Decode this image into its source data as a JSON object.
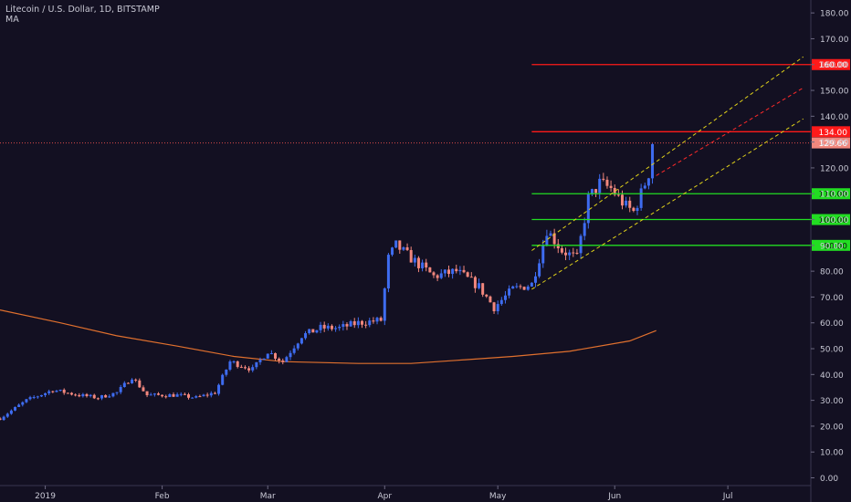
{
  "chart_data": {
    "type": "candlestick",
    "symbol_line": "Litecoin / U.S. Dollar, 1D, BITSTAMP",
    "indicator": "MA",
    "x_axis": {
      "tick_labels": [
        "2019",
        "Feb",
        "Mar",
        "Apr",
        "May",
        "Jun",
        "Jul"
      ],
      "ticks_on_date": [
        "2019-01-01",
        "2019-02-01",
        "2019-03-01",
        "2019-04-01",
        "2019-05-01",
        "2019-06-01",
        "2019-07-01"
      ],
      "range": [
        "2018-12-20",
        "2019-07-23"
      ]
    },
    "y_axis": {
      "range": [
        -3,
        185
      ],
      "ticks": [
        0,
        10,
        20,
        30,
        40,
        50,
        60,
        70,
        80,
        90,
        100,
        110,
        120,
        130,
        140,
        150,
        160,
        170,
        180
      ],
      "tick_labels": [
        "0.00",
        "10.00",
        "20.00",
        "30.00",
        "40.00",
        "50.00",
        "60.00",
        "70.00",
        "80.00",
        "90.00",
        "100.00",
        "110.00",
        "120.00",
        "130.00",
        "140.00",
        "150.00",
        "160.00",
        "170.00",
        "180.00"
      ]
    },
    "colors": {
      "up": "#3e6cf0",
      "down": "#f2877d",
      "ma": "#e0702e",
      "background": "#131022",
      "red_level": "#ff1a1a",
      "green_level": "#22dd22",
      "channel": "#e0d21a",
      "channel_mid": "#ff2a2a"
    },
    "candles_close": [
      {
        "date": "2018-12-20",
        "value": 23
      },
      {
        "date": "2018-12-27",
        "value": 30
      },
      {
        "date": "2019-01-03",
        "value": 34
      },
      {
        "date": "2019-01-10",
        "value": 32
      },
      {
        "date": "2019-01-15",
        "value": 31
      },
      {
        "date": "2019-01-20",
        "value": 33
      },
      {
        "date": "2019-01-24",
        "value": 39
      },
      {
        "date": "2019-01-28",
        "value": 32
      },
      {
        "date": "2019-02-05",
        "value": 32
      },
      {
        "date": "2019-02-10",
        "value": 31
      },
      {
        "date": "2019-02-15",
        "value": 33
      },
      {
        "date": "2019-02-19",
        "value": 45
      },
      {
        "date": "2019-02-25",
        "value": 42
      },
      {
        "date": "2019-03-01",
        "value": 49
      },
      {
        "date": "2019-03-05",
        "value": 45
      },
      {
        "date": "2019-03-10",
        "value": 55
      },
      {
        "date": "2019-03-15",
        "value": 58
      },
      {
        "date": "2019-03-20",
        "value": 58
      },
      {
        "date": "2019-03-25",
        "value": 60
      },
      {
        "date": "2019-03-31",
        "value": 61
      },
      {
        "date": "2019-04-02",
        "value": 85
      },
      {
        "date": "2019-04-04",
        "value": 90
      },
      {
        "date": "2019-04-08",
        "value": 85
      },
      {
        "date": "2019-04-14",
        "value": 78
      },
      {
        "date": "2019-04-20",
        "value": 80
      },
      {
        "date": "2019-04-26",
        "value": 74
      },
      {
        "date": "2019-04-30",
        "value": 66
      },
      {
        "date": "2019-05-05",
        "value": 73
      },
      {
        "date": "2019-05-10",
        "value": 75
      },
      {
        "date": "2019-05-12",
        "value": 85
      },
      {
        "date": "2019-05-14",
        "value": 96
      },
      {
        "date": "2019-05-18",
        "value": 88
      },
      {
        "date": "2019-05-22",
        "value": 85
      },
      {
        "date": "2019-05-25",
        "value": 108
      },
      {
        "date": "2019-05-28",
        "value": 114
      },
      {
        "date": "2019-05-31",
        "value": 112
      },
      {
        "date": "2019-06-04",
        "value": 105
      },
      {
        "date": "2019-06-06",
        "value": 103
      },
      {
        "date": "2019-06-08",
        "value": 110
      },
      {
        "date": "2019-06-10",
        "value": 118
      },
      {
        "date": "2019-06-11",
        "value": 130
      }
    ],
    "ma_line": [
      {
        "date": "2018-12-20",
        "value": 65
      },
      {
        "date": "2019-01-05",
        "value": 60
      },
      {
        "date": "2019-01-20",
        "value": 55
      },
      {
        "date": "2019-02-05",
        "value": 51
      },
      {
        "date": "2019-02-20",
        "value": 47
      },
      {
        "date": "2019-03-05",
        "value": 45
      },
      {
        "date": "2019-03-25",
        "value": 44.3
      },
      {
        "date": "2019-04-08",
        "value": 44.3
      },
      {
        "date": "2019-04-20",
        "value": 45.5
      },
      {
        "date": "2019-05-05",
        "value": 47
      },
      {
        "date": "2019-05-20",
        "value": 49
      },
      {
        "date": "2019-06-05",
        "value": 53
      },
      {
        "date": "2019-06-12",
        "value": 57
      }
    ],
    "horizontal_levels": [
      {
        "value": 160,
        "label": "160.00",
        "color": "red",
        "start": "2019-05-10"
      },
      {
        "value": 134,
        "label": "134.00",
        "color": "red",
        "start": "2019-05-10"
      },
      {
        "value": 110,
        "label": "110.00",
        "color": "green",
        "start": "2019-05-10"
      },
      {
        "value": 100,
        "label": "100.00",
        "color": "green",
        "start": "2019-05-10"
      },
      {
        "value": 90,
        "label": "90.00",
        "color": "green",
        "start": "2019-05-10"
      }
    ],
    "last_price": {
      "value": 129.66,
      "label": "129.66"
    },
    "channel": {
      "upper": [
        {
          "date": "2019-05-10",
          "value": 88
        },
        {
          "date": "2019-07-21",
          "value": 163
        }
      ],
      "lower": [
        {
          "date": "2019-05-10",
          "value": 73
        },
        {
          "date": "2019-07-21",
          "value": 139
        }
      ],
      "mid": [
        {
          "date": "2019-06-12",
          "value": 117
        },
        {
          "date": "2019-07-21",
          "value": 151
        }
      ]
    }
  }
}
